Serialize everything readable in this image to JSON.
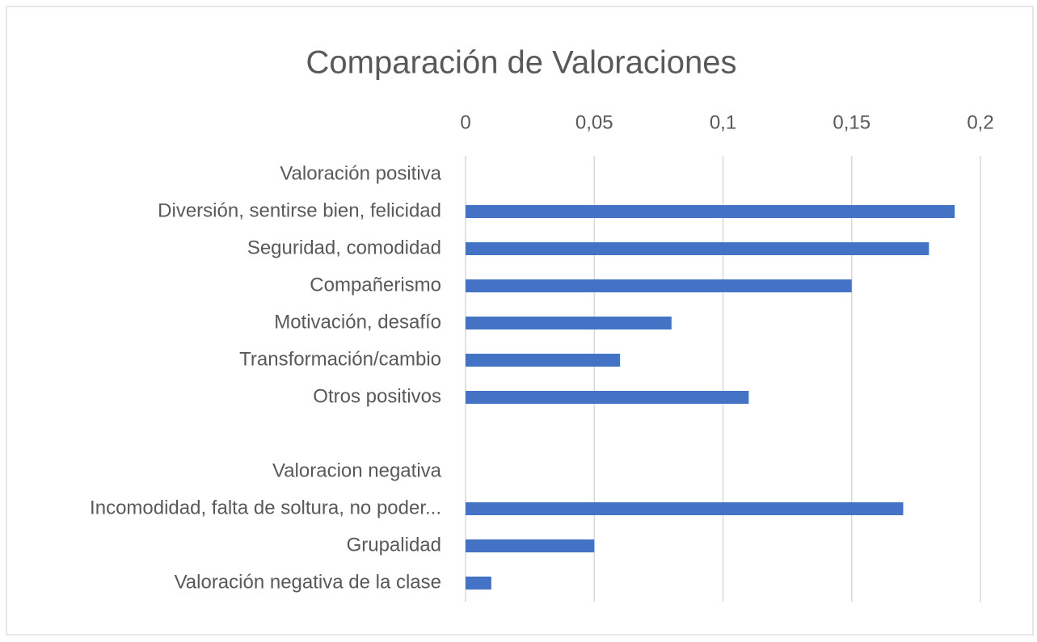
{
  "chart_data": {
    "type": "bar",
    "orientation": "horizontal",
    "title": "Comparación de Valoraciones",
    "categories": [
      "Valoración positiva",
      "Diversión, sentirse bien, felicidad",
      "Seguridad, comodidad",
      "Compañerismo",
      "Motivación, desafío",
      "Transformación/cambio",
      "Otros positivos",
      null,
      "Valoracion negativa",
      "Incomodidad, falta de soltura, no poder...",
      "Grupalidad",
      "Valoración negativa de la clase"
    ],
    "values": [
      null,
      0.19,
      0.18,
      0.15,
      0.08,
      0.06,
      0.11,
      null,
      null,
      0.17,
      0.05,
      0.01
    ],
    "color": "#4472c4",
    "xlim": [
      0,
      0.2
    ],
    "xticks": [
      0,
      {
        "value": 0.05,
        "label": "0,05"
      },
      {
        "value": 0.1,
        "label": "0,1"
      },
      {
        "value": 0.15,
        "label": "0,15"
      },
      {
        "value": 0.2,
        "label": "0,2"
      }
    ],
    "grid": true,
    "axis_position": "top"
  }
}
